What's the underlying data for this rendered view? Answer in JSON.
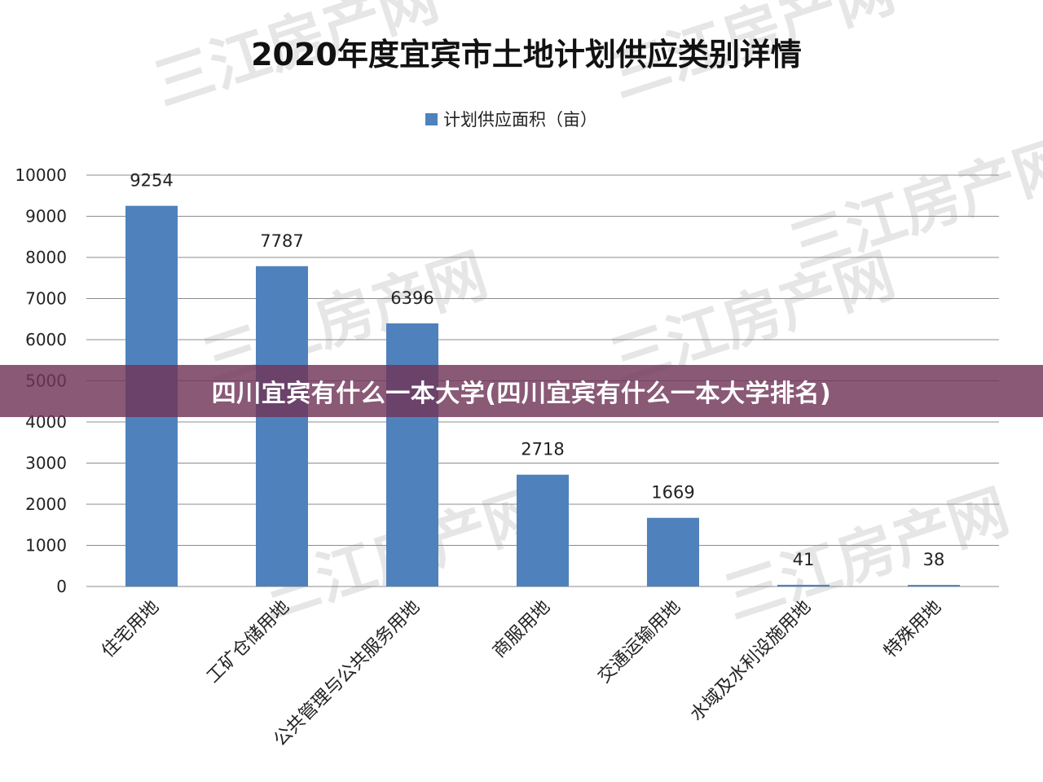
{
  "overlay": {
    "caption": "四川宜宾有什么一本大学(四川宜宾有什么一本大学排名)"
  },
  "watermark": {
    "text": "三江房产网"
  },
  "colors": {
    "bar": "#4f81bd",
    "banner": "#703458",
    "grid": "#8c8c8c"
  },
  "chart_data": {
    "type": "bar",
    "title": "2020年度宜宾市土地计划供应类别详情",
    "legend_position": "top-center",
    "grid": true,
    "ylim": [
      0,
      10000
    ],
    "yticks": [
      0,
      1000,
      2000,
      3000,
      4000,
      5000,
      6000,
      7000,
      8000,
      9000,
      10000
    ],
    "categories": [
      "住宅用地",
      "工矿仓储用地",
      "公共管理与公共服务用地",
      "商服用地",
      "交通运输用地",
      "水域及水利设施用地",
      "特殊用地"
    ],
    "series": [
      {
        "name": "计划供应面积（亩）",
        "values": [
          9254,
          7787,
          6396,
          2718,
          1669,
          41,
          38
        ]
      }
    ],
    "data_labels": [
      "9254",
      "7787",
      "6396",
      "2718",
      "1669",
      "41",
      "38"
    ]
  }
}
